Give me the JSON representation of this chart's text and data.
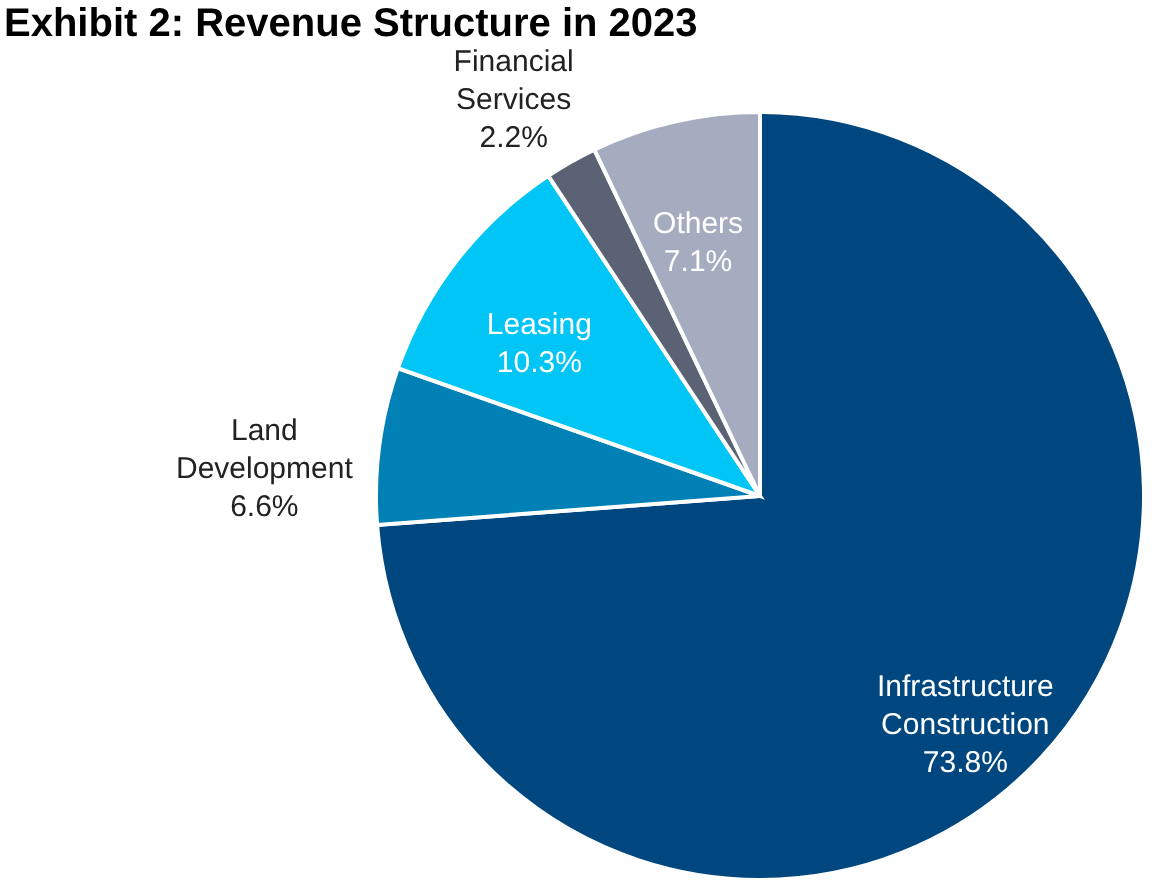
{
  "chart_data": {
    "type": "pie",
    "title": "Exhibit 2: Revenue Structure in 2023",
    "categories": [
      "Infrastructure Construction",
      "Land Development",
      "Leasing",
      "Financial Services",
      "Others"
    ],
    "values": [
      73.8,
      6.6,
      10.3,
      2.2,
      7.1
    ],
    "value_labels": [
      "73.8%",
      "6.6%",
      "10.3%",
      "2.2%",
      "7.1%"
    ],
    "colors": [
      "#00467f",
      "#0080b4",
      "#00c5f5",
      "#5b6273",
      "#a6acbf"
    ],
    "legend": false
  }
}
